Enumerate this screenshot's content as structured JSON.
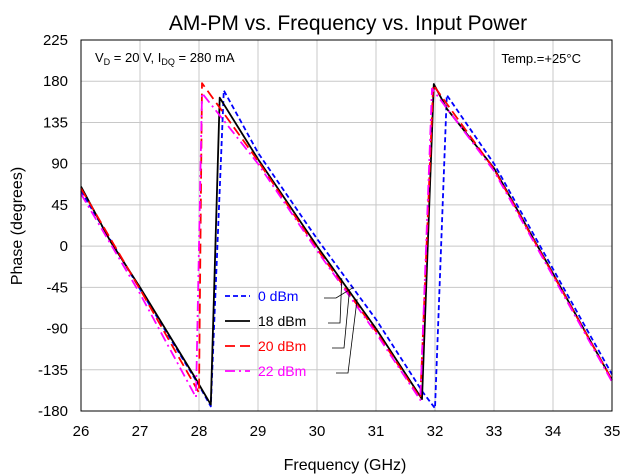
{
  "chart_data": {
    "type": "line",
    "title": "AM-PM vs. Frequency vs. Input Power",
    "xlabel": "Frequency (GHz)",
    "ylabel": "Phase (degrees)",
    "xlim": [
      26,
      35
    ],
    "ylim": [
      -180,
      225
    ],
    "xticks": [
      26,
      27,
      28,
      29,
      30,
      31,
      32,
      33,
      34,
      35
    ],
    "yticks": [
      -180,
      -135,
      -90,
      -45,
      0,
      45,
      90,
      135,
      180,
      225
    ],
    "grid": true,
    "annotations": {
      "conditions": {
        "prefix": "V",
        "sub1": "D",
        "mid": " = 20 V, I",
        "sub2": "DQ",
        "suffix": " = 280 mA"
      },
      "temp": "Temp.=+25°C"
    },
    "legend_placement": "center-left",
    "series": [
      {
        "name": "0  dBm",
        "color": "#0000ff",
        "dash": "dashed",
        "x": [
          26,
          27,
          28,
          28.2,
          28.42,
          29,
          30,
          31,
          31.8,
          32.0,
          32.2,
          33,
          34,
          35
        ],
        "y": [
          60,
          -47,
          -152,
          -175,
          170,
          102,
          8,
          -80,
          -160,
          -177,
          165,
          90,
          -25,
          -140
        ]
      },
      {
        "name": "18 dBm",
        "color": "#000000",
        "dash": "solid",
        "x": [
          26,
          26.5,
          27,
          27.9,
          28.2,
          28.35,
          29,
          30,
          31,
          31.78,
          31.98,
          32.2,
          33,
          34,
          35
        ],
        "y": [
          65,
          5,
          -45,
          -140,
          -173,
          162,
          95,
          0,
          -90,
          -167,
          177,
          150,
          85,
          -30,
          -146
        ]
      },
      {
        "name": "20  dBm",
        "color": "#ff0000",
        "dash": "longdash",
        "x": [
          26,
          27,
          28.0,
          28.05,
          29,
          30,
          31,
          31.75,
          31.97,
          33,
          34,
          35
        ],
        "y": [
          63,
          -47,
          -160,
          178,
          93,
          -3,
          -93,
          -166,
          176,
          84,
          -31,
          -146
        ]
      },
      {
        "name": "22 dBm",
        "color": "#ff00ff",
        "dash": "dashdot",
        "x": [
          26,
          27,
          27.95,
          28.05,
          29,
          30,
          31,
          31.75,
          31.95,
          33,
          34,
          35
        ],
        "y": [
          57,
          -52,
          -165,
          167,
          90,
          -5,
          -95,
          -168,
          172,
          82,
          -33,
          -148
        ]
      }
    ]
  }
}
